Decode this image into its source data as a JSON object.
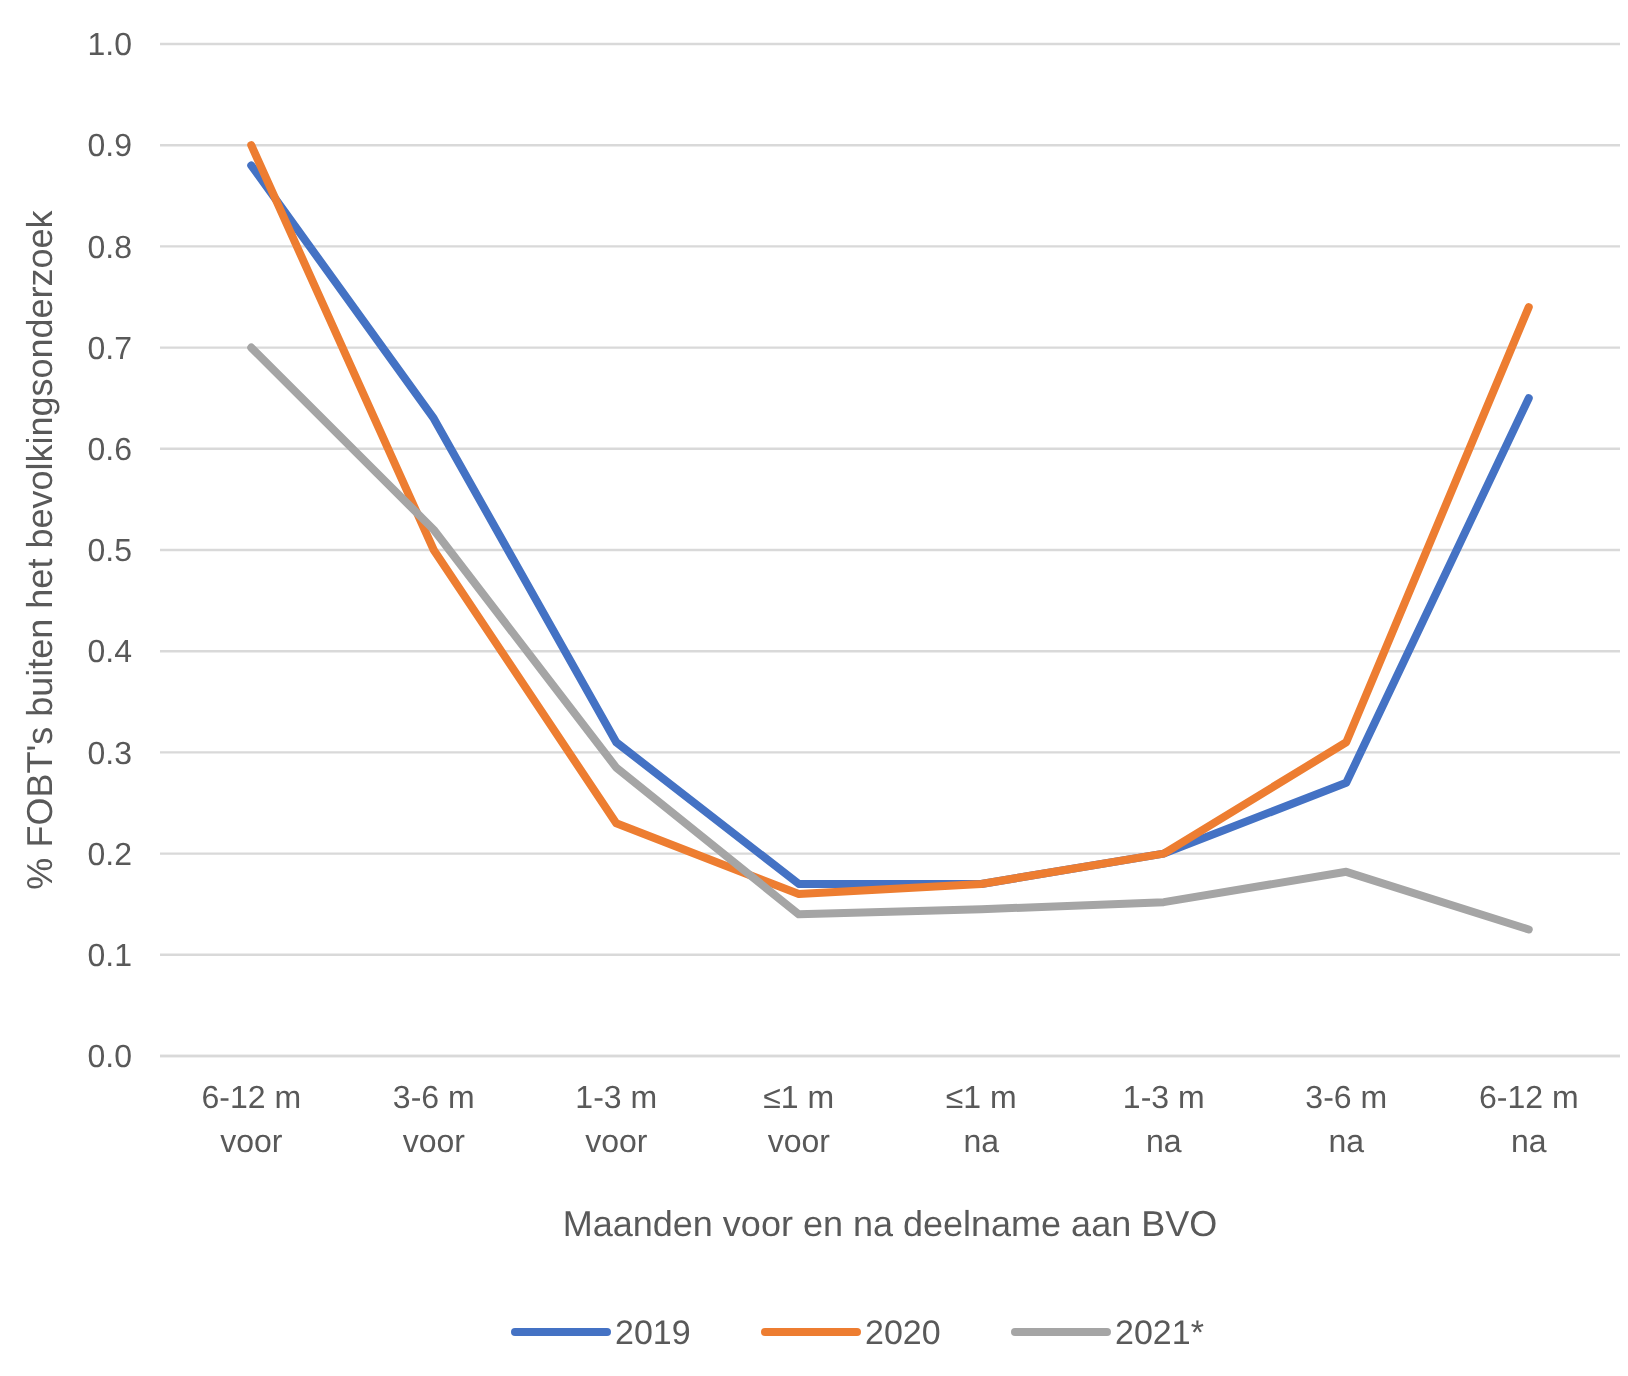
{
  "chart_data": {
    "type": "line",
    "xlabel": "Maanden voor en na deelname aan BVO",
    "ylabel": "% FOBT's buiten het bevolkingsonderzoek",
    "categories": [
      "6-12 m\nvoor",
      "3-6 m\nvoor",
      "1-3 m\nvoor",
      "≤1 m\nvoor",
      "≤1 m\nna",
      "1-3 m\nna",
      "3-6 m\nna",
      "6-12 m\nna"
    ],
    "series": [
      {
        "name": "2019",
        "color": "#4472c4",
        "values": [
          0.88,
          0.63,
          0.31,
          0.17,
          0.17,
          0.2,
          0.27,
          0.65
        ]
      },
      {
        "name": "2020",
        "color": "#ed7d31",
        "values": [
          0.9,
          0.5,
          0.23,
          0.16,
          0.17,
          0.2,
          0.31,
          0.74
        ]
      },
      {
        "name": "2021*",
        "color": "#a5a5a5",
        "values": [
          0.7,
          0.52,
          0.285,
          0.14,
          0.145,
          0.152,
          0.182,
          0.125
        ]
      }
    ],
    "ylim": [
      0,
      1
    ],
    "yticks": [
      {
        "value": 0,
        "label": "0.0"
      },
      {
        "value": 0.1,
        "label": "0.1"
      },
      {
        "value": 0.2,
        "label": "0.2"
      },
      {
        "value": 0.3,
        "label": "0.3"
      },
      {
        "value": 0.4,
        "label": "0.4"
      },
      {
        "value": 0.5,
        "label": "0.5"
      },
      {
        "value": 0.6,
        "label": "0.6"
      },
      {
        "value": 0.7,
        "label": "0.7"
      },
      {
        "value": 0.8,
        "label": "0.8"
      },
      {
        "value": 0.9,
        "label": "0.9"
      },
      {
        "value": 1,
        "label": "1.0"
      }
    ],
    "grid": "y",
    "legend": "bottom",
    "marker": "none",
    "line_style": "solid"
  }
}
